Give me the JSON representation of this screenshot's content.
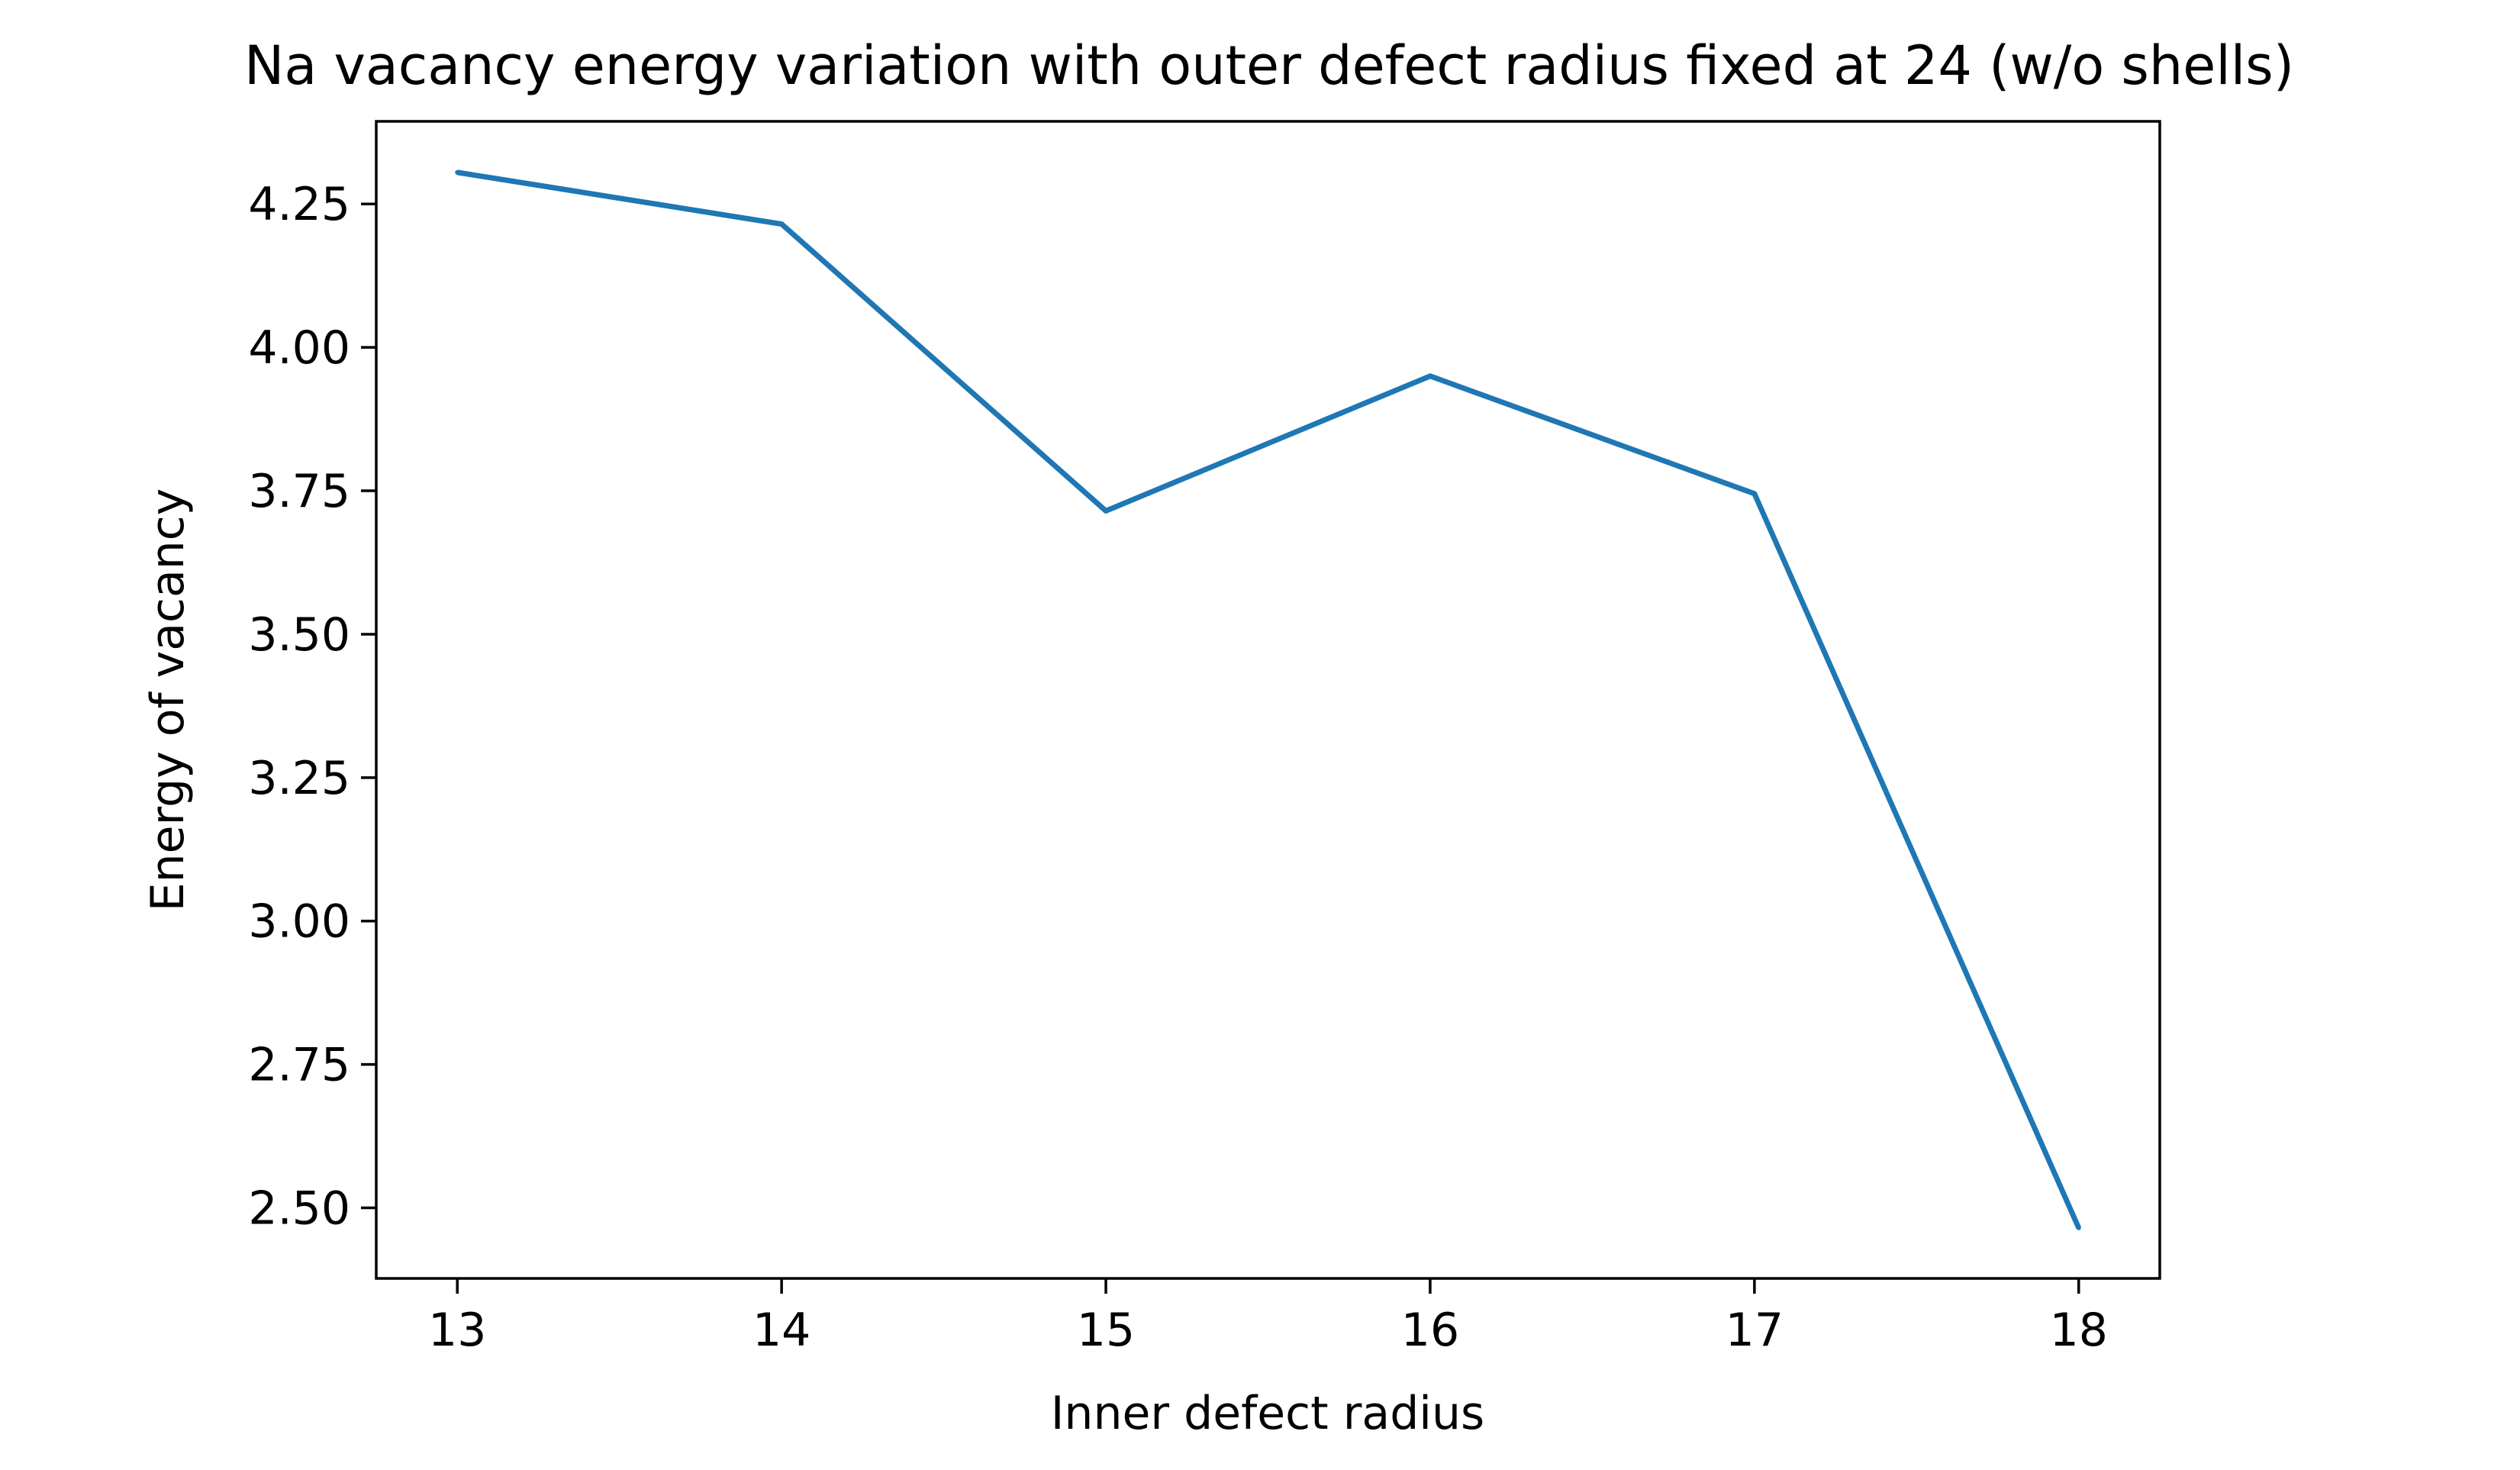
{
  "chart_data": {
    "type": "line",
    "title": "Na vacancy energy variation with outer defect radius fixed at 24 (w/o shells)",
    "xlabel": "Inner defect radius",
    "ylabel": "Energy of vacancy",
    "x": [
      13,
      14,
      15,
      16,
      17,
      18
    ],
    "series": [
      {
        "values": [
          4.305,
          4.215,
          3.715,
          3.95,
          3.745,
          2.465
        ],
        "color": "#1f77b4"
      }
    ],
    "xlim": [
      12.75,
      18.25
    ],
    "ylim": [
      2.377,
      4.394
    ],
    "xticks": [
      "13",
      "14",
      "15",
      "16",
      "17",
      "18"
    ],
    "xtick_values": [
      13,
      14,
      15,
      16,
      17,
      18
    ],
    "yticks": [
      "2.50",
      "2.75",
      "3.00",
      "3.25",
      "3.50",
      "3.75",
      "4.00",
      "4.25"
    ],
    "ytick_values": [
      2.5,
      2.75,
      3.0,
      3.25,
      3.5,
      3.75,
      4.0,
      4.25
    ],
    "grid": false,
    "legend": "none"
  }
}
